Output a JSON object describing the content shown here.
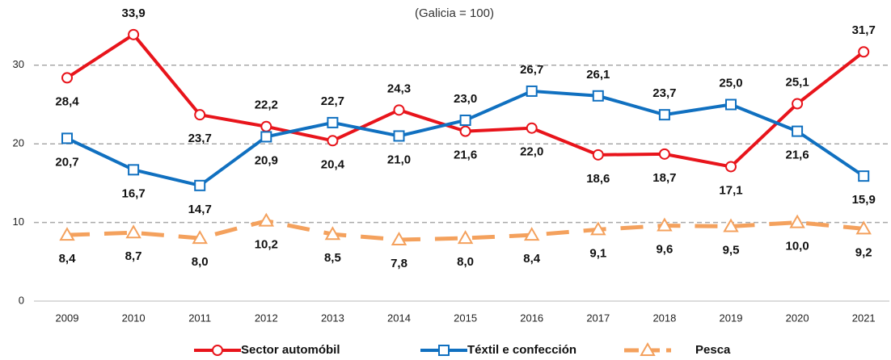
{
  "chart_data": {
    "type": "line",
    "subtitle": "(Galicia = 100)",
    "categories": [
      "2009",
      "2010",
      "2011",
      "2012",
      "2013",
      "2014",
      "2015",
      "2016",
      "2017",
      "2018",
      "2019",
      "2020",
      "2021"
    ],
    "ylim": [
      0,
      37
    ],
    "yticks": [
      0,
      10,
      20,
      30
    ],
    "grid": true,
    "series": [
      {
        "name": "Sector automóbil",
        "color": "#e8141b",
        "marker": "circle",
        "dashed": false,
        "values": [
          28.4,
          33.9,
          23.7,
          22.2,
          20.4,
          24.3,
          21.6,
          22.0,
          18.6,
          18.7,
          17.1,
          25.1,
          31.7
        ],
        "value_labels": [
          "28,4",
          "33,9",
          "23,7",
          "22,2",
          "20,4",
          "24,3",
          "21,6",
          "22,0",
          "18,6",
          "18,7",
          "17,1",
          "25,1",
          "31,7"
        ]
      },
      {
        "name": "Téxtil e confección",
        "color": "#1070c0",
        "marker": "square",
        "dashed": false,
        "values": [
          20.7,
          16.7,
          14.7,
          20.9,
          22.7,
          21.0,
          23.0,
          26.7,
          26.1,
          23.7,
          25.0,
          21.6,
          15.9
        ],
        "value_labels": [
          "20,7",
          "16,7",
          "14,7",
          "20,9",
          "22,7",
          "21,0",
          "23,0",
          "26,7",
          "26,1",
          "23,7",
          "25,0",
          "21,6",
          "15,9"
        ]
      },
      {
        "name": "Pesca",
        "color": "#f4a15d",
        "marker": "triangle",
        "dashed": true,
        "values": [
          8.4,
          8.7,
          8.0,
          10.2,
          8.5,
          7.8,
          8.0,
          8.4,
          9.1,
          9.6,
          9.5,
          10.0,
          9.2
        ],
        "value_labels": [
          "8,4",
          "8,7",
          "8,0",
          "10,2",
          "8,5",
          "7,8",
          "8,0",
          "8,4",
          "9,1",
          "9,6",
          "9,5",
          "10,0",
          "9,2"
        ]
      }
    ]
  }
}
